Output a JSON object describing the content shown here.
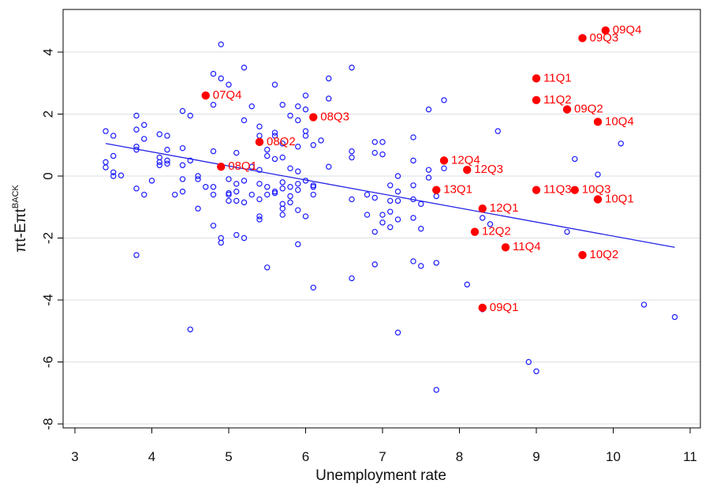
{
  "chart_data": {
    "type": "scatter",
    "xlabel": "Unemployment rate",
    "ylabel": "πt-Eπt",
    "ylabel_super": "BACK",
    "xlim": [
      2.8,
      11.2
    ],
    "ylim": [
      -8.8,
      5.4
    ],
    "x_ticks": [
      3,
      4,
      5,
      6,
      7,
      8,
      9,
      10,
      11
    ],
    "y_ticks": [
      4,
      2,
      0,
      -2,
      -4,
      -6,
      -8
    ],
    "grid": "horizontal",
    "colors": {
      "scatter": "#1a1aff",
      "highlight": "#ff0000",
      "fit_line": "#2424e6",
      "plot_bg": "#ffffff",
      "grid": "#d9e0e5"
    },
    "fit_line": {
      "x": [
        3.4,
        10.8
      ],
      "y": [
        1.05,
        -2.3
      ]
    },
    "series": [
      {
        "marker": "hollow-circle",
        "points": [
          [
            3.4,
            1.45
          ],
          [
            3.4,
            0.45
          ],
          [
            3.4,
            0.28
          ],
          [
            3.5,
            1.3
          ],
          [
            3.5,
            0.65
          ],
          [
            3.5,
            0.12
          ],
          [
            3.5,
            0.0
          ],
          [
            3.6,
            0.02
          ],
          [
            3.8,
            1.95
          ],
          [
            3.8,
            1.5
          ],
          [
            3.8,
            0.95
          ],
          [
            3.8,
            0.85
          ],
          [
            3.8,
            -0.4
          ],
          [
            3.8,
            -2.55
          ],
          [
            3.9,
            1.65
          ],
          [
            3.9,
            1.2
          ],
          [
            3.9,
            -0.6
          ],
          [
            4.0,
            -0.15
          ],
          [
            4.1,
            1.35
          ],
          [
            4.1,
            0.6
          ],
          [
            4.1,
            0.45
          ],
          [
            4.1,
            0.35
          ],
          [
            4.2,
            1.3
          ],
          [
            4.2,
            0.85
          ],
          [
            4.2,
            0.5
          ],
          [
            4.2,
            0.4
          ],
          [
            4.3,
            -0.6
          ],
          [
            4.4,
            2.1
          ],
          [
            4.4,
            0.9
          ],
          [
            4.4,
            0.35
          ],
          [
            4.4,
            -0.1
          ],
          [
            4.4,
            -0.5
          ],
          [
            4.5,
            1.95
          ],
          [
            4.5,
            0.5
          ],
          [
            4.5,
            -4.95
          ],
          [
            4.6,
            0.0
          ],
          [
            4.6,
            -0.1
          ],
          [
            4.6,
            -1.05
          ],
          [
            4.7,
            -0.35
          ],
          [
            4.8,
            3.3
          ],
          [
            4.8,
            2.3
          ],
          [
            4.8,
            0.8
          ],
          [
            4.8,
            -0.35
          ],
          [
            4.8,
            -0.6
          ],
          [
            4.8,
            -1.6
          ],
          [
            4.9,
            4.25
          ],
          [
            4.9,
            3.15
          ],
          [
            4.9,
            -2.0
          ],
          [
            4.9,
            -2.15
          ],
          [
            5.0,
            2.95
          ],
          [
            5.0,
            -0.1
          ],
          [
            5.0,
            -0.55
          ],
          [
            5.0,
            -0.6
          ],
          [
            5.0,
            -0.8
          ],
          [
            5.1,
            0.75
          ],
          [
            5.1,
            -0.25
          ],
          [
            5.1,
            -0.5
          ],
          [
            5.1,
            -0.8
          ],
          [
            5.1,
            -1.9
          ],
          [
            5.2,
            3.5
          ],
          [
            5.2,
            1.8
          ],
          [
            5.2,
            -0.15
          ],
          [
            5.2,
            -0.85
          ],
          [
            5.2,
            -2.0
          ],
          [
            5.3,
            2.25
          ],
          [
            5.3,
            0.3
          ],
          [
            5.3,
            -0.6
          ],
          [
            5.4,
            1.6
          ],
          [
            5.4,
            1.3
          ],
          [
            5.4,
            0.2
          ],
          [
            5.4,
            -0.25
          ],
          [
            5.4,
            -0.75
          ],
          [
            5.4,
            -1.3
          ],
          [
            5.4,
            -1.4
          ],
          [
            5.5,
            0.85
          ],
          [
            5.5,
            0.65
          ],
          [
            5.5,
            -0.35
          ],
          [
            5.5,
            -0.6
          ],
          [
            5.5,
            -2.95
          ],
          [
            5.6,
            2.95
          ],
          [
            5.6,
            1.4
          ],
          [
            5.6,
            1.3
          ],
          [
            5.6,
            0.55
          ],
          [
            5.6,
            -0.5
          ],
          [
            5.6,
            -0.55
          ],
          [
            5.7,
            2.3
          ],
          [
            5.7,
            1.05
          ],
          [
            5.7,
            0.6
          ],
          [
            5.7,
            -0.2
          ],
          [
            5.7,
            -0.4
          ],
          [
            5.7,
            -0.9
          ],
          [
            5.7,
            -1.05
          ],
          [
            5.7,
            -1.25
          ],
          [
            5.8,
            1.95
          ],
          [
            5.8,
            0.25
          ],
          [
            5.8,
            -0.35
          ],
          [
            5.8,
            -0.65
          ],
          [
            5.8,
            -0.85
          ],
          [
            5.9,
            2.25
          ],
          [
            5.9,
            1.8
          ],
          [
            5.9,
            0.95
          ],
          [
            5.9,
            0.15
          ],
          [
            5.9,
            -0.25
          ],
          [
            5.9,
            -0.45
          ],
          [
            5.9,
            -1.1
          ],
          [
            5.9,
            -2.2
          ],
          [
            6.0,
            2.6
          ],
          [
            6.0,
            2.15
          ],
          [
            6.0,
            1.45
          ],
          [
            6.0,
            1.3
          ],
          [
            6.0,
            -0.15
          ],
          [
            6.0,
            -1.3
          ],
          [
            6.1,
            1.0
          ],
          [
            6.1,
            -0.3
          ],
          [
            6.1,
            -0.35
          ],
          [
            6.1,
            -0.6
          ],
          [
            6.1,
            -3.6
          ],
          [
            6.2,
            1.15
          ],
          [
            6.3,
            3.15
          ],
          [
            6.3,
            2.5
          ],
          [
            6.3,
            0.3
          ],
          [
            6.6,
            3.5
          ],
          [
            6.6,
            0.8
          ],
          [
            6.6,
            0.6
          ],
          [
            6.6,
            -0.75
          ],
          [
            6.6,
            -3.3
          ],
          [
            6.8,
            -0.6
          ],
          [
            6.8,
            -1.25
          ],
          [
            6.9,
            1.1
          ],
          [
            6.9,
            0.75
          ],
          [
            6.9,
            -0.7
          ],
          [
            6.9,
            -1.8
          ],
          [
            6.9,
            -2.85
          ],
          [
            7.0,
            1.1
          ],
          [
            7.0,
            0.7
          ],
          [
            7.0,
            -1.25
          ],
          [
            7.0,
            -1.5
          ],
          [
            7.1,
            -0.3
          ],
          [
            7.1,
            -0.8
          ],
          [
            7.1,
            -1.15
          ],
          [
            7.1,
            -1.65
          ],
          [
            7.2,
            0.0
          ],
          [
            7.2,
            -0.5
          ],
          [
            7.2,
            -0.8
          ],
          [
            7.2,
            -1.4
          ],
          [
            7.2,
            -5.05
          ],
          [
            7.4,
            1.25
          ],
          [
            7.4,
            0.5
          ],
          [
            7.4,
            -0.3
          ],
          [
            7.4,
            -0.75
          ],
          [
            7.4,
            -1.35
          ],
          [
            7.4,
            -2.75
          ],
          [
            7.5,
            -0.9
          ],
          [
            7.5,
            -1.7
          ],
          [
            7.5,
            -2.9
          ],
          [
            7.6,
            2.15
          ],
          [
            7.6,
            0.2
          ],
          [
            7.6,
            -0.05
          ],
          [
            7.7,
            -0.65
          ],
          [
            7.7,
            -2.8
          ],
          [
            7.7,
            -6.9
          ],
          [
            7.8,
            2.45
          ],
          [
            7.8,
            0.25
          ],
          [
            8.1,
            -3.5
          ],
          [
            8.3,
            -1.35
          ],
          [
            8.3,
            -4.3
          ],
          [
            8.4,
            -1.55
          ],
          [
            8.5,
            1.45
          ],
          [
            8.9,
            -6.0
          ],
          [
            9.0,
            -6.3
          ],
          [
            9.4,
            -1.8
          ],
          [
            9.5,
            0.55
          ],
          [
            9.8,
            0.05
          ],
          [
            10.1,
            1.05
          ],
          [
            10.4,
            -4.15
          ],
          [
            10.8,
            -4.55
          ]
        ]
      },
      {
        "marker": "filled-circle",
        "points": [
          {
            "x": 4.7,
            "y": 2.6,
            "label": "07Q4"
          },
          {
            "x": 6.1,
            "y": 1.9,
            "label": "08Q3"
          },
          {
            "x": 5.4,
            "y": 1.1,
            "label": "08Q2"
          },
          {
            "x": 4.9,
            "y": 0.3,
            "label": "08Q1"
          },
          {
            "x": 9.9,
            "y": 4.7,
            "label": "09Q4"
          },
          {
            "x": 9.6,
            "y": 4.45,
            "label": "09Q3"
          },
          {
            "x": 9.4,
            "y": 2.15,
            "label": "09Q2"
          },
          {
            "x": 8.3,
            "y": -4.25,
            "label": "09Q1"
          },
          {
            "x": 9.8,
            "y": 1.75,
            "label": "10Q4"
          },
          {
            "x": 9.5,
            "y": -0.45,
            "label": "10Q3"
          },
          {
            "x": 9.6,
            "y": -2.55,
            "label": "10Q2"
          },
          {
            "x": 9.8,
            "y": -0.75,
            "label": "10Q1"
          },
          {
            "x": 9.0,
            "y": 3.15,
            "label": "11Q1"
          },
          {
            "x": 9.0,
            "y": 2.45,
            "label": "11Q2"
          },
          {
            "x": 9.0,
            "y": -0.45,
            "label": "11Q3"
          },
          {
            "x": 8.6,
            "y": -2.3,
            "label": "11Q4"
          },
          {
            "x": 8.3,
            "y": -1.05,
            "label": "12Q1"
          },
          {
            "x": 8.2,
            "y": -1.8,
            "label": "12Q2"
          },
          {
            "x": 8.1,
            "y": 0.2,
            "label": "12Q3"
          },
          {
            "x": 7.8,
            "y": 0.5,
            "label": "12Q4"
          },
          {
            "x": 7.7,
            "y": -0.45,
            "label": "13Q1"
          }
        ]
      }
    ]
  }
}
